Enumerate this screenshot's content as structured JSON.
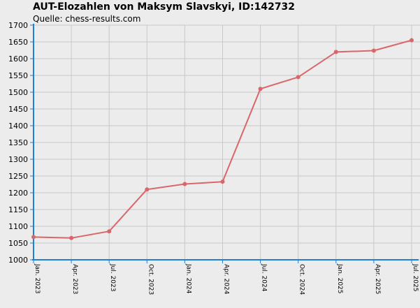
{
  "chart_data": {
    "type": "line",
    "title": "AUT-Elozahlen von Maksym Slavskyi, ID:142732",
    "subtitle": "Quelle: chess-results.com",
    "xlabel": "",
    "ylabel": "",
    "ylim": [
      1000,
      1700
    ],
    "yticks": [
      1000,
      1050,
      1100,
      1150,
      1200,
      1250,
      1300,
      1350,
      1400,
      1450,
      1500,
      1550,
      1600,
      1650,
      1700
    ],
    "grid": true,
    "categories": [
      "Jan. 2023",
      "Apr. 2023",
      "Jul. 2023",
      "Oct. 2023",
      "Jan. 2024",
      "Apr. 2024",
      "Jul. 2024",
      "Oct. 2024",
      "Jan. 2025",
      "Apr. 2025",
      "Jul. 2025"
    ],
    "x": [
      0,
      3,
      6,
      9,
      12,
      15,
      18,
      21,
      24,
      27,
      30
    ],
    "x_ticks": [
      0,
      3,
      6,
      9,
      12,
      15,
      18,
      21,
      24,
      27,
      30
    ],
    "series": [
      {
        "x": [
          0,
          3,
          6,
          9,
          12,
          15,
          18,
          21,
          24,
          27,
          30
        ],
        "values": [
          1068,
          1065,
          1085,
          1210,
          1226,
          1233,
          1510,
          1545,
          1620,
          1624,
          1655
        ],
        "color": "#d9676a"
      }
    ],
    "colors": {
      "background": "#ececec",
      "grid": "#c8c8c8",
      "axis": "#1e7fd6",
      "line": "#d9676a"
    }
  }
}
